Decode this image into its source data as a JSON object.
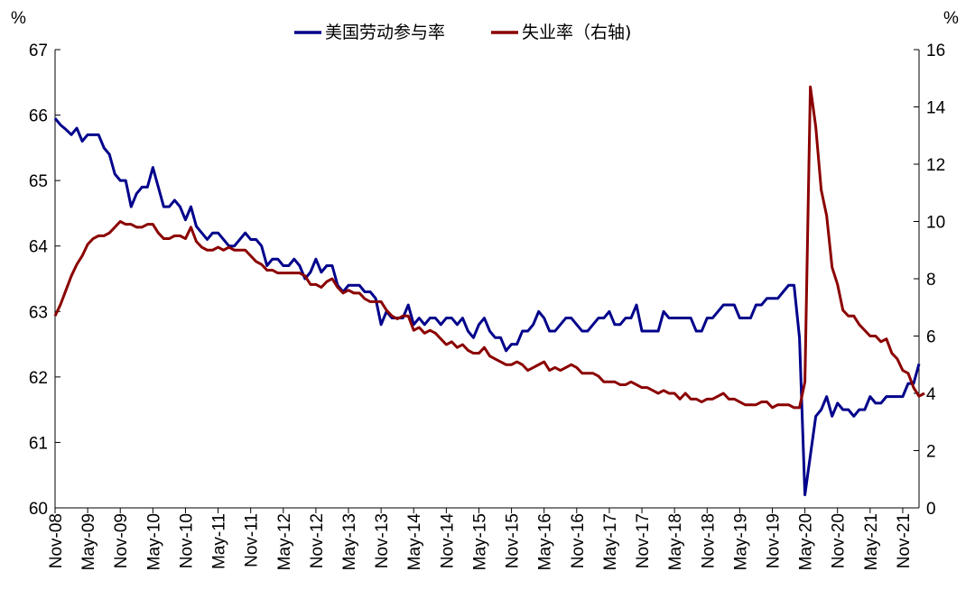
{
  "chart_data": {
    "type": "line",
    "title": "",
    "legend_position": "top-center",
    "grid": false,
    "y_left": {
      "unit": "%",
      "min": 60,
      "max": 67,
      "ticks": [
        60,
        61,
        62,
        63,
        64,
        65,
        66,
        67
      ]
    },
    "y_right": {
      "unit": "%",
      "min": 0,
      "max": 16,
      "ticks": [
        0,
        2,
        4,
        6,
        8,
        10,
        12,
        14,
        16
      ]
    },
    "x_ticks": [
      "Nov-08",
      "May-09",
      "Nov-09",
      "May-10",
      "Nov-10",
      "May-11",
      "Nov-11",
      "May-12",
      "Nov-12",
      "May-13",
      "Nov-13",
      "May-14",
      "Nov-14",
      "May-15",
      "Nov-15",
      "May-16",
      "Nov-16",
      "May-17",
      "Nov-17",
      "May-18",
      "Nov-18",
      "May-19",
      "Nov-19",
      "May-20",
      "Nov-20",
      "May-21",
      "Nov-21"
    ],
    "series": [
      {
        "name": "美国劳动参与率",
        "axis": "left",
        "color": "#00008B",
        "start": "Nov-08",
        "values": [
          65.95,
          65.85,
          65.78,
          65.7,
          65.8,
          65.6,
          65.7,
          65.7,
          65.7,
          65.5,
          65.4,
          65.1,
          65.0,
          65.0,
          64.6,
          64.8,
          64.9,
          64.9,
          65.2,
          64.9,
          64.6,
          64.6,
          64.7,
          64.6,
          64.4,
          64.6,
          64.3,
          64.2,
          64.1,
          64.2,
          64.2,
          64.1,
          64.0,
          64.0,
          64.1,
          64.2,
          64.1,
          64.1,
          64.0,
          63.7,
          63.8,
          63.8,
          63.7,
          63.7,
          63.8,
          63.7,
          63.5,
          63.6,
          63.8,
          63.6,
          63.7,
          63.7,
          63.4,
          63.3,
          63.4,
          63.4,
          63.4,
          63.3,
          63.3,
          63.2,
          62.8,
          63.0,
          62.9,
          62.9,
          62.9,
          63.1,
          62.8,
          62.9,
          62.8,
          62.9,
          62.9,
          62.8,
          62.9,
          62.9,
          62.8,
          62.9,
          62.7,
          62.6,
          62.8,
          62.9,
          62.7,
          62.6,
          62.6,
          62.4,
          62.5,
          62.5,
          62.7,
          62.7,
          62.8,
          63.0,
          62.9,
          62.7,
          62.7,
          62.8,
          62.9,
          62.9,
          62.8,
          62.7,
          62.7,
          62.8,
          62.9,
          62.9,
          63.0,
          62.8,
          62.8,
          62.9,
          62.9,
          63.1,
          62.7,
          62.7,
          62.7,
          62.7,
          63.0,
          62.9,
          62.9,
          62.9,
          62.9,
          62.9,
          62.7,
          62.7,
          62.9,
          62.9,
          63.0,
          63.1,
          63.1,
          63.1,
          62.9,
          62.9,
          62.9,
          63.1,
          63.1,
          63.2,
          63.2,
          63.2,
          63.3,
          63.4,
          63.4,
          62.6,
          60.2,
          60.8,
          61.4,
          61.5,
          61.7,
          61.4,
          61.6,
          61.5,
          61.5,
          61.4,
          61.5,
          61.5,
          61.7,
          61.6,
          61.6,
          61.7,
          61.7,
          61.7,
          61.7,
          61.9,
          61.9,
          62.2
        ]
      },
      {
        "name": "失业率（右轴)",
        "axis": "right",
        "color": "#8B0000",
        "start": "Nov-08",
        "values": [
          6.7,
          7.1,
          7.6,
          8.1,
          8.5,
          8.8,
          9.2,
          9.4,
          9.5,
          9.5,
          9.6,
          9.8,
          10.0,
          9.9,
          9.9,
          9.8,
          9.8,
          9.9,
          9.9,
          9.6,
          9.4,
          9.4,
          9.5,
          9.5,
          9.4,
          9.8,
          9.3,
          9.1,
          9.0,
          9.0,
          9.1,
          9.0,
          9.1,
          9.0,
          9.0,
          9.0,
          8.8,
          8.6,
          8.5,
          8.3,
          8.3,
          8.2,
          8.2,
          8.2,
          8.2,
          8.2,
          8.1,
          7.8,
          7.8,
          7.7,
          7.9,
          8.0,
          7.7,
          7.5,
          7.6,
          7.5,
          7.5,
          7.3,
          7.2,
          7.2,
          7.2,
          6.9,
          6.7,
          6.6,
          6.7,
          6.7,
          6.2,
          6.3,
          6.1,
          6.2,
          6.1,
          5.9,
          5.7,
          5.8,
          5.6,
          5.7,
          5.5,
          5.4,
          5.4,
          5.6,
          5.3,
          5.2,
          5.1,
          5.0,
          5.0,
          5.1,
          5.0,
          4.8,
          4.9,
          5.0,
          5.1,
          4.8,
          4.9,
          4.8,
          4.9,
          5.0,
          4.9,
          4.7,
          4.7,
          4.7,
          4.6,
          4.4,
          4.4,
          4.4,
          4.3,
          4.3,
          4.4,
          4.3,
          4.2,
          4.2,
          4.1,
          4.0,
          4.1,
          4.0,
          4.0,
          3.8,
          4.0,
          3.8,
          3.8,
          3.7,
          3.8,
          3.8,
          3.9,
          4.0,
          3.8,
          3.8,
          3.7,
          3.6,
          3.6,
          3.6,
          3.7,
          3.7,
          3.5,
          3.6,
          3.6,
          3.6,
          3.5,
          3.5,
          4.4,
          14.7,
          13.3,
          11.1,
          10.2,
          8.4,
          7.8,
          6.9,
          6.7,
          6.7,
          6.4,
          6.2,
          6.0,
          6.0,
          5.8,
          5.9,
          5.4,
          5.2,
          4.8,
          4.7,
          4.2,
          3.9,
          4.0
        ]
      }
    ]
  }
}
